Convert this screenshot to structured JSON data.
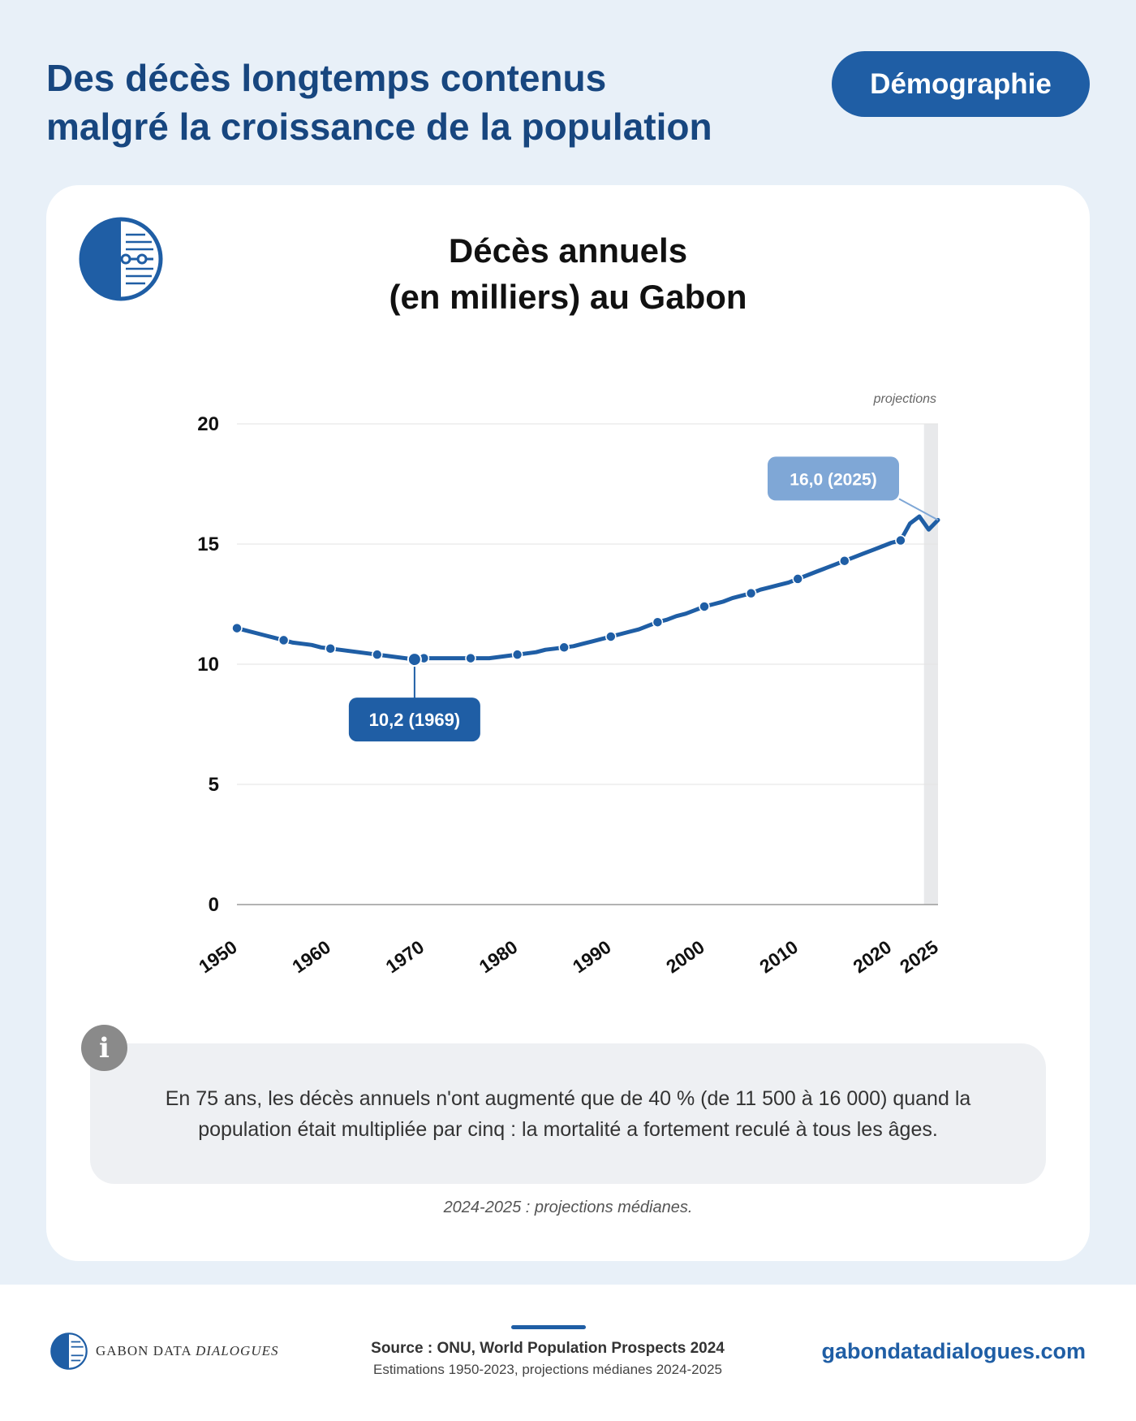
{
  "header": {
    "title_line1": "Des décès longtemps contenus",
    "title_line2": "malgré la croissance de la population",
    "tag": "Démographie"
  },
  "chart_title": {
    "line1": "Décès annuels",
    "line2": "(en milliers) au Gabon"
  },
  "colors": {
    "primary": "#1f5ea5",
    "dark_blue": "#17467f",
    "light_label": "#7fa7d6",
    "projection_band": "#e8e9eb",
    "background": "#e8f0f8"
  },
  "chart_data": {
    "type": "line",
    "title": "Décès annuels (en milliers) au Gabon",
    "xlabel": "",
    "ylabel": "",
    "x_ticks": [
      1950,
      1960,
      1970,
      1980,
      1990,
      2000,
      2010,
      2020,
      2025
    ],
    "y_ticks": [
      0,
      5,
      10,
      15,
      20
    ],
    "xlim": [
      1950,
      2025
    ],
    "ylim": [
      0,
      20
    ],
    "grid": true,
    "projection_band": {
      "from": 2023.5,
      "to": 2025,
      "label": "projections"
    },
    "x": [
      1950,
      1951,
      1952,
      1953,
      1954,
      1955,
      1956,
      1957,
      1958,
      1959,
      1960,
      1961,
      1962,
      1963,
      1964,
      1965,
      1966,
      1967,
      1968,
      1969,
      1970,
      1971,
      1972,
      1973,
      1974,
      1975,
      1976,
      1977,
      1978,
      1979,
      1980,
      1981,
      1982,
      1983,
      1984,
      1985,
      1986,
      1987,
      1988,
      1989,
      1990,
      1991,
      1992,
      1993,
      1994,
      1995,
      1996,
      1997,
      1998,
      1999,
      2000,
      2001,
      2002,
      2003,
      2004,
      2005,
      2006,
      2007,
      2008,
      2009,
      2010,
      2011,
      2012,
      2013,
      2014,
      2015,
      2016,
      2017,
      2018,
      2019,
      2020,
      2021,
      2022,
      2023,
      2024,
      2025
    ],
    "y": [
      11.5,
      11.4,
      11.3,
      11.2,
      11.1,
      11.0,
      10.9,
      10.85,
      10.8,
      10.7,
      10.65,
      10.6,
      10.55,
      10.5,
      10.45,
      10.4,
      10.35,
      10.3,
      10.25,
      10.2,
      10.25,
      10.25,
      10.25,
      10.25,
      10.25,
      10.25,
      10.25,
      10.25,
      10.3,
      10.35,
      10.4,
      10.45,
      10.5,
      10.6,
      10.65,
      10.7,
      10.75,
      10.85,
      10.95,
      11.05,
      11.15,
      11.25,
      11.35,
      11.45,
      11.6,
      11.75,
      11.85,
      12.0,
      12.1,
      12.25,
      12.4,
      12.5,
      12.6,
      12.75,
      12.85,
      12.95,
      13.1,
      13.2,
      13.3,
      13.4,
      13.55,
      13.7,
      13.85,
      14.0,
      14.15,
      14.3,
      14.45,
      14.6,
      14.75,
      14.9,
      15.05,
      15.15,
      15.85,
      16.15,
      15.6,
      16.0
    ],
    "marker_x": [
      1950,
      1955,
      1960,
      1965,
      1970,
      1975,
      1980,
      1985,
      1990,
      1995,
      2000,
      2005,
      2010,
      2015,
      2021
    ],
    "series": [
      {
        "values_key": "y"
      }
    ],
    "annotations": [
      {
        "x": 1969,
        "y": 10.2,
        "text": "10,2 (1969)"
      },
      {
        "x": 2025,
        "y": 16.0,
        "text": "16,0 (2025)"
      }
    ]
  },
  "info": {
    "icon": "i",
    "text": "En 75 ans, les décès annuels n'ont augmenté que de 40 % (de 11 500 à 16 000) quand la population était multipliée par cinq : la mortalité a fortement reculé à tous les âges."
  },
  "projection_note": "2024-2025 : projections médianes.",
  "footer": {
    "brand_main": "GABON DATA ",
    "brand_italic": "DIALOGUES",
    "source": "Source : ONU, World Population Prospects 2024",
    "source_sub": "Estimations 1950-2023, projections médianes 2024-2025",
    "website": "gabondatadialogues.com"
  }
}
